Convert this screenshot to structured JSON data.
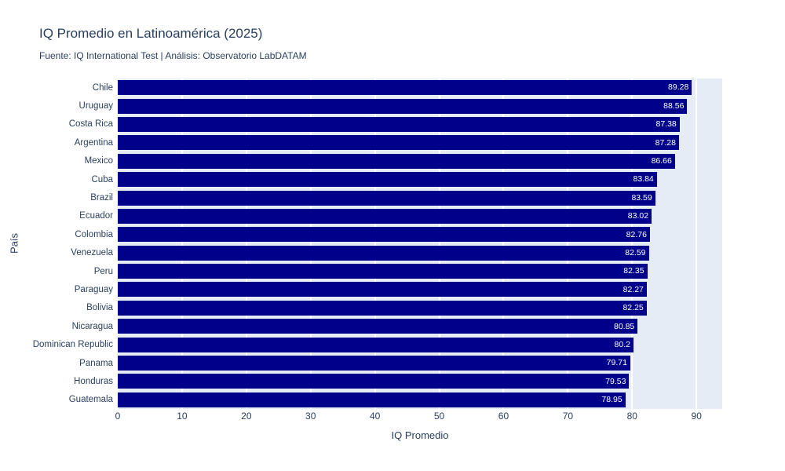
{
  "chart_data": {
    "type": "bar",
    "orientation": "horizontal",
    "title": "IQ Promedio en Latinoamérica (2025)",
    "subtitle": "Fuente: IQ International Test | Análisis: Observatorio LabDATAM",
    "xlabel": "IQ Promedio",
    "ylabel": "País",
    "categories": [
      "Chile",
      "Uruguay",
      "Costa Rica",
      "Argentina",
      "Mexico",
      "Cuba",
      "Brazil",
      "Ecuador",
      "Colombia",
      "Venezuela",
      "Peru",
      "Paraguay",
      "Bolivia",
      "Nicaragua",
      "Dominican Republic",
      "Panama",
      "Honduras",
      "Guatemala"
    ],
    "values": [
      89.28,
      88.56,
      87.38,
      87.28,
      86.66,
      83.84,
      83.59,
      83.02,
      82.76,
      82.59,
      82.35,
      82.27,
      82.25,
      80.85,
      80.2,
      79.71,
      79.53,
      78.95
    ],
    "value_labels": [
      "89.28",
      "88.56",
      "87.38",
      "87.28",
      "86.66",
      "83.84",
      "83.59",
      "83.02",
      "82.76",
      "82.59",
      "82.35",
      "82.27",
      "82.25",
      "80.85",
      "80.2",
      "79.71",
      "79.53",
      "78.95"
    ],
    "xticks": [
      0,
      10,
      20,
      30,
      40,
      50,
      60,
      70,
      80,
      90
    ],
    "xlim": [
      0,
      94
    ],
    "grid": true,
    "legend_position": "none",
    "colors": {
      "bar": "#00008B",
      "plot_background": "#E5ECF6",
      "grid_line": "#ffffff",
      "text": "#2a3f5f",
      "value_label": "#ffffff",
      "page_background": "#ffffff"
    }
  }
}
